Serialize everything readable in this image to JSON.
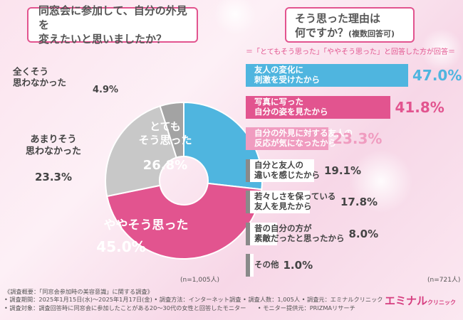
{
  "left": {
    "title_line1": "同窓会に参加して、自分の外見を",
    "title_line2": "変えたいと思いましたか？",
    "n_note": "(n=1,005人)"
  },
  "right": {
    "title_line1": "そう思った理由は",
    "title_line2": "何ですか？",
    "title_suffix": "(複数回答可)",
    "criteria": "＝「とてもそう思った」「ややそう思った」と回答した方が回答＝",
    "n_note": "(n=721人)"
  },
  "footer": {
    "line1": "《調査概要：「同窓会参加時の美容意識」に関する調査》",
    "line2": "• 調査期間：2025年1月15日(水)～2025年1月17日(金) • 調査方法：インターネット調査 • 調査人数：1,005人 • 調査元：エミナルクリニック",
    "line3": "• 調査対象：調査回答時に同窓会に参加したことがある20～30代の女性と回答したモニター　　• モニター提供元：PRIZMAリサーチ"
  },
  "brand": {
    "name": "エミナル",
    "sub": "クリニック"
  },
  "chart_data": [
    {
      "type": "pie",
      "slices": [
        {
          "label": "とてもそう思った",
          "value": 26.8,
          "value_text": "26.8%",
          "color": "#4fb5df"
        },
        {
          "label": "ややそう思った",
          "value": 45.0,
          "value_text": "45.0%",
          "color": "#e2548f"
        },
        {
          "label": "あまりそう思わなかった",
          "value": 23.3,
          "value_text": "23.3%",
          "color": "#c8c8c8"
        },
        {
          "label": "全くそう思わなかった",
          "value": 4.9,
          "value_text": "4.9%",
          "color": "#a3a3a3"
        }
      ]
    },
    {
      "type": "bar",
      "orientation": "horizontal",
      "max": 47.0,
      "bars": [
        {
          "label": "友人の変化に刺激を受けたから",
          "lines": [
            "友人の変化に",
            "刺激を受けたから"
          ],
          "value": 47.0,
          "value_text": "47.0%",
          "color": "#4fb5df"
        },
        {
          "label": "写真に写った自分の姿を見たから",
          "lines": [
            "写真に写った",
            "自分の姿を見たから"
          ],
          "value": 41.8,
          "value_text": "41.8%",
          "color": "#e2548f"
        },
        {
          "label": "自分の外見に対する友人の反応が気になったから",
          "lines": [
            "自分の外見に対する友人の",
            "反応が気になったから"
          ],
          "value": 23.3,
          "value_text": "23.3%",
          "color": "#f09cc0"
        },
        {
          "label": "自分と友人の違いを感じたから",
          "lines": [
            "自分と友人の",
            "違いを感じたから"
          ],
          "value": 19.1,
          "value_text": "19.1%",
          "color": "#ffffff"
        },
        {
          "label": "若々しさを保っている友人を見たから",
          "lines": [
            "若々しさを保っている",
            "友人を見たから"
          ],
          "value": 17.8,
          "value_text": "17.8%",
          "color": "#ffffff"
        },
        {
          "label": "昔の自分の方が素敵だったと思ったから",
          "lines": [
            "昔の自分の方が",
            "素敵だったと思ったから"
          ],
          "value": 8.0,
          "value_text": "8.0%",
          "color": "#ffffff"
        },
        {
          "label": "その他",
          "lines": [
            "その他"
          ],
          "value": 1.0,
          "value_text": "1.0%",
          "color": "#ffffff"
        }
      ]
    }
  ]
}
